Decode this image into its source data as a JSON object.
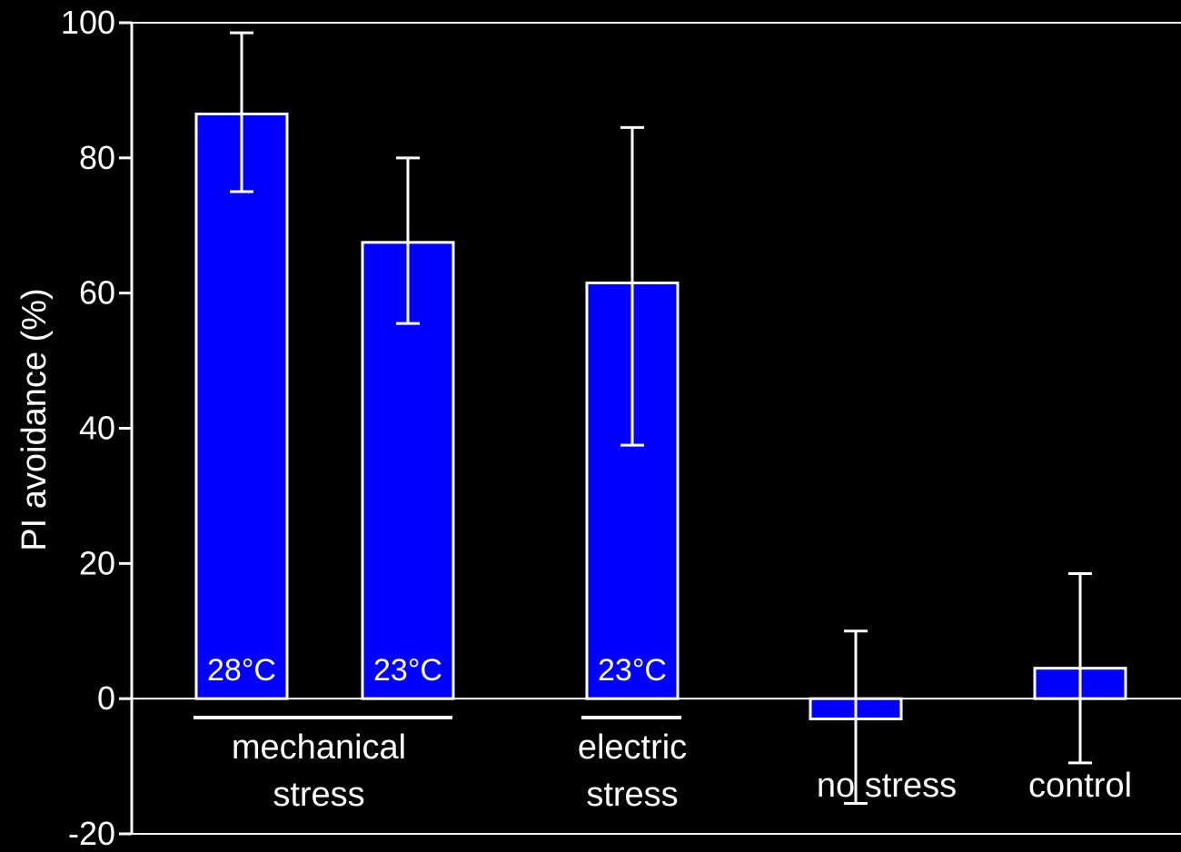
{
  "chart_data": {
    "type": "bar",
    "title": "",
    "xlabel": "",
    "ylabel": "PI avoidance (%)",
    "ylim": [
      -20,
      100
    ],
    "yticks": [
      -20,
      0,
      20,
      40,
      60,
      80,
      100
    ],
    "grid": false,
    "legend": "none",
    "bars": [
      {
        "inner_label": "28°C",
        "value": 86.5,
        "err_low": 75,
        "err_high": 98.5
      },
      {
        "inner_label": "23°C",
        "value": 67.5,
        "err_low": 55.5,
        "err_high": 80
      },
      {
        "inner_label": "23°C",
        "value": 61.5,
        "err_low": 37.5,
        "err_high": 84.5
      },
      {
        "inner_label": "",
        "value": -3,
        "err_low": -15.5,
        "err_high": 10
      },
      {
        "inner_label": "",
        "value": 4.5,
        "err_low": -9.5,
        "err_high": 18.5
      }
    ],
    "groups": [
      {
        "label_lines": [
          "mechanical",
          "stress"
        ],
        "bars": [
          0,
          1
        ]
      },
      {
        "label_lines": [
          "electric",
          "stress"
        ],
        "bars": [
          2
        ]
      },
      {
        "label_lines": [
          "no stress"
        ],
        "bars": [
          3
        ]
      },
      {
        "label_lines": [
          "control"
        ],
        "bars": [
          4
        ]
      }
    ],
    "colors": {
      "bar_fill": "#0000ff",
      "bar_stroke": "#ffffff",
      "axis": "#ffffff",
      "background": "#000000"
    }
  }
}
